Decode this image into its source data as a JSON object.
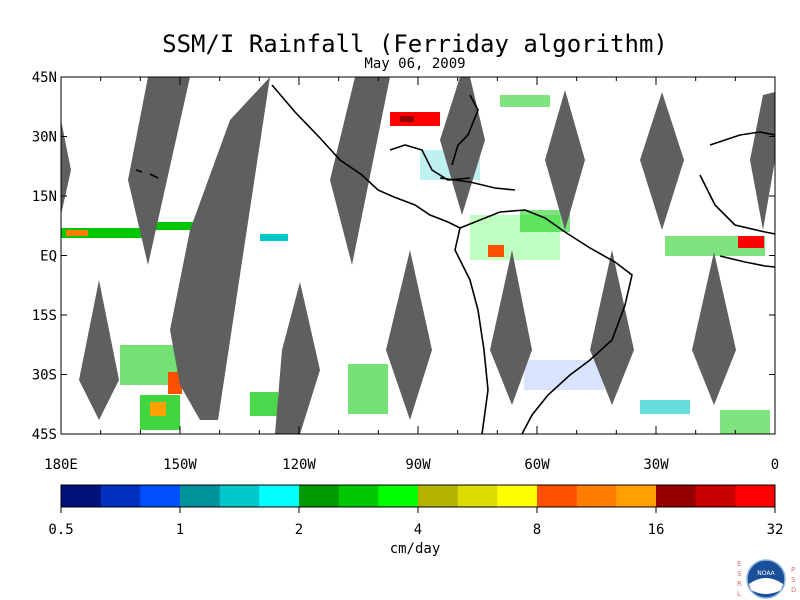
{
  "title": "SSM/I Rainfall (Ferriday algorithm)",
  "date": "May 06, 2009",
  "map": {
    "lat_labels": [
      "45N",
      "30N",
      "15N",
      "EQ",
      "15S",
      "30S",
      "45S"
    ],
    "lat_values": [
      45,
      30,
      15,
      0,
      -15,
      -30,
      -45
    ],
    "lon_labels": [
      "180E",
      "150W",
      "120W",
      "90W",
      "60W",
      "30W",
      "0"
    ],
    "lon_values": [
      -180,
      -150,
      -120,
      -90,
      -60,
      -30,
      0
    ],
    "extent": {
      "lon_min": -180,
      "lon_max": 0,
      "lat_min": -45,
      "lat_max": 45
    },
    "swath_gap_color": "#5f5f5f",
    "coast_color": "#000000"
  },
  "colorbar": {
    "colors": [
      "#00127a",
      "#0030c0",
      "#0050ff",
      "#00949a",
      "#00c8c8",
      "#00ffff",
      "#009a00",
      "#00c800",
      "#00ff00",
      "#b4b400",
      "#dcdc00",
      "#ffff00",
      "#ff5000",
      "#ff7d00",
      "#ffa000",
      "#960000",
      "#c80000",
      "#ff0000"
    ],
    "tick_labels": [
      "0.5",
      "1",
      "2",
      "4",
      "8",
      "16",
      "32"
    ],
    "units": "cm/day"
  },
  "logo": {
    "left_letters": [
      "E",
      "S",
      "R",
      "L"
    ],
    "right_letters": [
      "P",
      "S",
      "D"
    ],
    "badge": "NOAA"
  }
}
